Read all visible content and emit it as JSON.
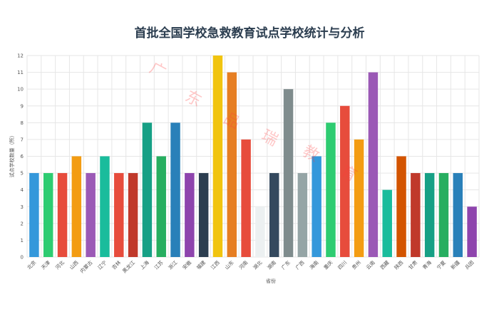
{
  "chart_data": {
    "type": "bar",
    "title": "首批全国学校急救教育试点学校统计与分析",
    "xlabel": "省份",
    "ylabel": "试点学校数量（所）",
    "ylim": [
      0,
      12
    ],
    "yticks": [
      0,
      1,
      2,
      3,
      4,
      5,
      6,
      7,
      8,
      9,
      10,
      11,
      12
    ],
    "grid": true,
    "categories": [
      "北京",
      "天津",
      "河北",
      "山西",
      "内蒙古",
      "辽宁",
      "吉林",
      "黑龙江",
      "上海",
      "江苏",
      "浙江",
      "安徽",
      "福建",
      "江西",
      "山东",
      "河南",
      "湖北",
      "湖南",
      "广东",
      "广西",
      "海南",
      "重庆",
      "四川",
      "贵州",
      "云南",
      "西藏",
      "陕西",
      "甘肃",
      "青海",
      "宁夏",
      "新疆",
      "兵团"
    ],
    "values": [
      5,
      5,
      5,
      6,
      5,
      6,
      5,
      5,
      8,
      6,
      8,
      5,
      5,
      12,
      11,
      7,
      3,
      5,
      10,
      5,
      6,
      8,
      9,
      7,
      11,
      4,
      6,
      5,
      5,
      5,
      5,
      3
    ],
    "colors": [
      "#3498db",
      "#2ecc71",
      "#e74c3c",
      "#f39c12",
      "#9b59b6",
      "#1abc9c",
      "#e74c3c",
      "#c0392b",
      "#16a085",
      "#27ae60",
      "#2980b9",
      "#8e44ad",
      "#2c3e50",
      "#f1c40f",
      "#e67e22",
      "#e74c3c",
      "#ecf0f1",
      "#34495e",
      "#7f8c8d",
      "#95a5a6",
      "#3498db",
      "#2ecc71",
      "#e74c3c",
      "#f39c12",
      "#9b59b6",
      "#1abc9c",
      "#d35400",
      "#c0392b",
      "#16a085",
      "#27ae60",
      "#2980b9",
      "#8e44ad"
    ]
  },
  "watermark": {
    "chars": [
      "广",
      "东",
      "品",
      "瑞",
      "教",
      "育"
    ]
  }
}
